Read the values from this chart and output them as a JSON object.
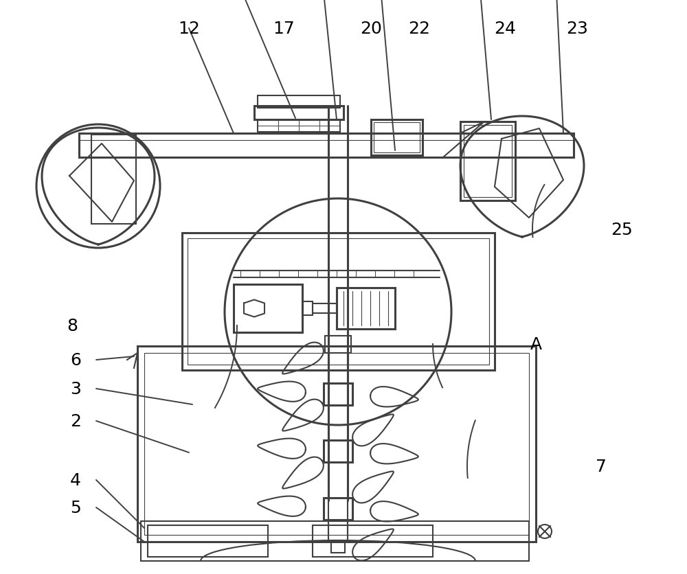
{
  "bg_color": "#ffffff",
  "line_color": "#404040",
  "figsize": [
    10.0,
    8.37
  ]
}
